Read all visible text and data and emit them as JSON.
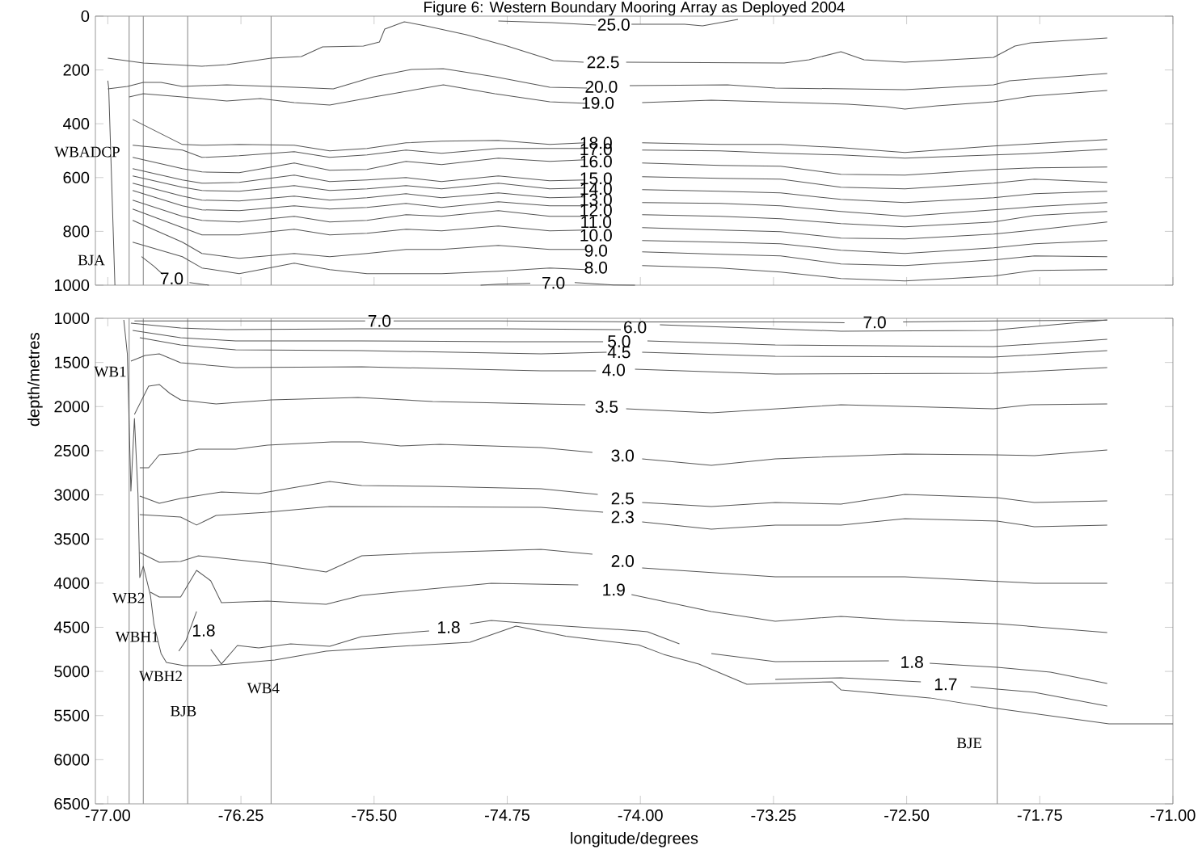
{
  "chart_data": [
    {
      "type": "line",
      "title": "Figure 6: Western Boundary Mooring Array as Deployed 2004",
      "xlim": [
        -77.07,
        -71.0
      ],
      "ylim": [
        1000,
        0
      ],
      "tick_labels": "y",
      "xticks": [
        -77,
        -76.25,
        -75.5,
        -74.75,
        -74,
        -73.25,
        -72.5,
        -71.75,
        -71
      ],
      "yticks": [
        0,
        200,
        400,
        600,
        800,
        1000
      ],
      "ref_lines": [
        {
          "axis": "x",
          "value": -76.88,
          "color": "#999999"
        },
        {
          "axis": "x",
          "value": -76.8,
          "color": "#999999"
        },
        {
          "axis": "x",
          "value": -76.55,
          "color": "#999999"
        },
        {
          "axis": "x",
          "value": -76.08,
          "color": "#999999"
        },
        {
          "axis": "x",
          "value": -71.99,
          "color": "#999999"
        }
      ],
      "annotations": [
        "WBADCP",
        "BJA"
      ],
      "series": [
        {
          "color": "#555555",
          "x": [
            -77.0,
            -76.995,
            -76.96
          ],
          "values": [
            240,
            267,
            1000
          ]
        },
        {
          "name": "25.0",
          "color": "#555555",
          "x": [
            -74.8,
            -74.5,
            -74.25,
            -74.15,
            -74.05,
            -73.75,
            -73.65,
            -73.45
          ],
          "values": [
            18,
            24,
            33,
            null,
            30,
            30,
            36,
            12
          ]
        },
        {
          "name": "22.5",
          "color": "#555555",
          "x": [
            -77.0,
            -76.8,
            -76.47,
            -76.33,
            -76.08,
            -75.91,
            -75.79,
            -75.56,
            -75.47,
            -75.44,
            -75.33,
            -75.21,
            -74.98,
            -74.75,
            -74.49,
            -74.32,
            -74.21,
            -74.08,
            -73.19,
            -73.05,
            -72.87,
            -72.74,
            -72.51,
            -72.01,
            -71.89,
            -71.8,
            -71.37
          ],
          "values": [
            156,
            174,
            186,
            180,
            156,
            150,
            114,
            111,
            96,
            48,
            21,
            36,
            69,
            111,
            165,
            171,
            null,
            171,
            174,
            162,
            132,
            162,
            171,
            153,
            111,
            99,
            81
          ]
        },
        {
          "name": "20.0",
          "color": "#555555",
          "x": [
            -77.0,
            -76.89,
            -76.8,
            -76.7,
            -76.58,
            -76.33,
            -76.08,
            -75.95,
            -75.73,
            -75.5,
            -75.29,
            -75.11,
            -74.82,
            -74.51,
            -74.3,
            -74.22,
            -74.06,
            -73.51,
            -73.24,
            -72.51,
            -72.01,
            -71.92,
            -71.37
          ],
          "values": [
            270,
            261,
            246,
            246,
            261,
            255,
            261,
            264,
            270,
            225,
            198,
            195,
            225,
            264,
            267,
            null,
            258,
            255,
            267,
            273,
            255,
            240,
            213
          ]
        },
        {
          "name": "19.0",
          "color": "#555555",
          "x": [
            -76.88,
            -76.8,
            -76.58,
            -76.33,
            -76.14,
            -75.95,
            -75.75,
            -75.5,
            -75.11,
            -74.82,
            -74.51,
            -74.3,
            -74.24,
            -73.99,
            -73.6,
            -72.83,
            -72.62,
            -72.51,
            -72.33,
            -72.01,
            -71.8,
            -71.37
          ],
          "values": [
            300,
            288,
            300,
            315,
            306,
            321,
            330,
            300,
            255,
            288,
            318,
            324,
            null,
            321,
            312,
            327,
            336,
            345,
            333,
            318,
            297,
            276
          ]
        },
        {
          "name": "18.0",
          "color": "#555555",
          "x": [
            -76.86,
            -76.58,
            -76.47,
            -76.26,
            -75.95,
            -75.75,
            -75.54,
            -75.32,
            -75.12,
            -74.8,
            -74.51,
            -74.31,
            -74.25,
            -73.99,
            -73.55,
            -73.21,
            -72.87,
            -72.51,
            -72.01,
            -71.78,
            -71.37
          ],
          "values": [
            384,
            477,
            480,
            477,
            480,
            501,
            492,
            471,
            465,
            462,
            477,
            471,
            null,
            471,
            477,
            477,
            489,
            507,
            483,
            474,
            459
          ]
        },
        {
          "name": "17.0",
          "color": "#555555",
          "x": [
            -76.86,
            -76.58,
            -76.47,
            -76.26,
            -75.95,
            -75.75,
            -75.54,
            -75.32,
            -75.12,
            -74.8,
            -74.51,
            -74.31,
            -74.25,
            -73.99,
            -73.55,
            -73.21,
            -72.87,
            -72.51,
            -72.01,
            -71.78,
            -71.37
          ],
          "values": [
            480,
            498,
            525,
            519,
            504,
            525,
            516,
            498,
            510,
            492,
            492,
            492,
            null,
            498,
            501,
            510,
            516,
            528,
            516,
            510,
            495
          ]
        },
        {
          "name": "16.0",
          "color": "#555555",
          "x": [
            -76.86,
            -76.58,
            -76.47,
            -76.26,
            -75.95,
            -75.75,
            -75.54,
            -75.32,
            -75.12,
            -74.8,
            -74.51,
            -74.31,
            -74.25,
            -73.99,
            -73.55,
            -73.21,
            -72.87,
            -72.51,
            -72.01,
            -71.78,
            -71.37
          ],
          "values": [
            525,
            567,
            579,
            582,
            546,
            573,
            570,
            540,
            552,
            528,
            540,
            534,
            null,
            546,
            555,
            558,
            588,
            591,
            570,
            564,
            561
          ]
        },
        {
          "name": "15.0",
          "color": "#555555",
          "x": [
            -76.86,
            -76.58,
            -76.47,
            -76.26,
            -75.95,
            -75.75,
            -75.54,
            -75.32,
            -75.12,
            -74.8,
            -74.51,
            -74.31,
            -74.25,
            -73.99,
            -73.55,
            -73.21,
            -72.87,
            -72.51,
            -72.01,
            -71.78,
            -71.37
          ],
          "values": [
            567,
            609,
            621,
            618,
            591,
            615,
            609,
            600,
            615,
            594,
            612,
            609,
            null,
            597,
            603,
            606,
            636,
            642,
            621,
            606,
            618
          ]
        },
        {
          "name": "14.0",
          "color": "#555555",
          "x": [
            -76.86,
            -76.58,
            -76.47,
            -76.26,
            -75.95,
            -75.75,
            -75.54,
            -75.32,
            -75.12,
            -74.8,
            -74.51,
            -74.31,
            -74.25,
            -73.99,
            -73.55,
            -73.21,
            -72.87,
            -72.51,
            -72.01,
            -71.78,
            -71.37
          ],
          "values": [
            594,
            636,
            648,
            651,
            630,
            648,
            642,
            630,
            642,
            621,
            642,
            639,
            null,
            645,
            651,
            657,
            681,
            693,
            675,
            660,
            651
          ]
        },
        {
          "name": "13.0",
          "color": "#555555",
          "x": [
            -76.86,
            -76.58,
            -76.47,
            -76.26,
            -75.95,
            -75.75,
            -75.54,
            -75.32,
            -75.12,
            -74.8,
            -74.51,
            -74.31,
            -74.25,
            -73.99,
            -73.55,
            -73.21,
            -72.87,
            -72.51,
            -72.01,
            -71.78,
            -71.37
          ],
          "values": [
            621,
            669,
            684,
            687,
            669,
            684,
            675,
            660,
            675,
            657,
            675,
            672,
            null,
            693,
            696,
            705,
            726,
            744,
            720,
            708,
            693
          ]
        },
        {
          "name": "12.0",
          "color": "#555555",
          "x": [
            -76.86,
            -76.58,
            -76.47,
            -76.26,
            -75.95,
            -75.75,
            -75.54,
            -75.32,
            -75.12,
            -74.8,
            -74.51,
            -74.31,
            -74.25,
            -73.99,
            -73.55,
            -73.21,
            -72.87,
            -72.51,
            -72.01,
            -71.78,
            -71.37
          ],
          "values": [
            648,
            705,
            720,
            723,
            705,
            717,
            711,
            696,
            711,
            690,
            705,
            705,
            null,
            738,
            744,
            753,
            771,
            783,
            765,
            741,
            726
          ]
        },
        {
          "name": "11.0",
          "color": "#555555",
          "x": [
            -76.86,
            -76.58,
            -76.47,
            -76.26,
            -75.95,
            -75.75,
            -75.54,
            -75.32,
            -75.12,
            -74.8,
            -74.51,
            -74.31,
            -74.25,
            -73.99,
            -73.55,
            -73.21,
            -72.87,
            -72.51,
            -72.01,
            -71.78,
            -71.37
          ],
          "values": [
            684,
            744,
            759,
            765,
            744,
            765,
            759,
            738,
            744,
            723,
            744,
            744,
            null,
            786,
            795,
            801,
            825,
            828,
            810,
            795,
            765
          ]
        },
        {
          "name": "10.0",
          "color": "#555555",
          "x": [
            -76.86,
            -76.58,
            -76.47,
            -76.26,
            -75.95,
            -75.75,
            -75.54,
            -75.32,
            -75.12,
            -74.8,
            -74.51,
            -74.31,
            -74.25,
            -73.99,
            -73.55,
            -73.21,
            -72.87,
            -72.51,
            -72.01,
            -71.78,
            -71.37
          ],
          "values": [
            717,
            786,
            813,
            813,
            792,
            813,
            807,
            792,
            798,
            780,
            798,
            795,
            null,
            834,
            840,
            846,
            870,
            882,
            861,
            846,
            834
          ]
        },
        {
          "name": "9.0",
          "color": "#555555",
          "x": [
            -76.86,
            -76.58,
            -76.47,
            -76.26,
            -75.95,
            -75.75,
            -75.54,
            -75.32,
            -75.12,
            -74.8,
            -74.51,
            -74.31,
            -74.25,
            -73.99,
            -73.55,
            -73.21,
            -72.87,
            -72.51,
            -72.01,
            -71.78,
            -71.37
          ],
          "values": [
            759,
            840,
            882,
            900,
            882,
            894,
            882,
            867,
            867,
            852,
            867,
            867,
            null,
            876,
            885,
            891,
            921,
            927,
            906,
            891,
            894
          ]
        },
        {
          "name": "8.0",
          "color": "#555555",
          "x": [
            -76.86,
            -76.58,
            -76.47,
            -76.26,
            -75.95,
            -75.75,
            -75.54,
            -75.32,
            -75.12,
            -74.8,
            -74.51,
            -74.31,
            -74.25,
            -73.99,
            -73.55,
            -73.21,
            -72.87,
            -72.51,
            -72.01,
            -71.78,
            -71.37
          ],
          "values": [
            840,
            894,
            936,
            957,
            918,
            942,
            957,
            957,
            957,
            948,
            936,
            942,
            null,
            927,
            936,
            951,
            975,
            984,
            966,
            945,
            942
          ]
        },
        {
          "name": "7.0",
          "color": "#555555",
          "x": [
            -76.81,
            -76.74,
            -76.69,
            -76.64,
            -76.54,
            -76.43
          ],
          "values": [
            894,
            930,
            960,
            null,
            990,
            1000
          ]
        },
        {
          "name": "7.0",
          "color": "#555555",
          "x": [
            -74.9,
            -74.8,
            -74.62,
            -74.49,
            -74.37,
            -74.15,
            -74.03
          ],
          "values": [
            1000,
            996,
            993,
            null,
            990,
            999,
            1000
          ]
        }
      ]
    },
    {
      "type": "line",
      "xlabel": "longitude/degrees",
      "ylabel": "depth/metres",
      "xlim": [
        -77.07,
        -71.0
      ],
      "ylim": [
        6500,
        1000
      ],
      "xticks": [
        {
          "value": -77,
          "label": "-77.00"
        },
        {
          "value": -76.25,
          "label": "-76.25"
        },
        {
          "value": -75.5,
          "label": "-75.50"
        },
        {
          "value": -74.75,
          "label": "-74.75"
        },
        {
          "value": -74,
          "label": "-74.00"
        },
        {
          "value": -73.25,
          "label": "-73.25"
        },
        {
          "value": -72.5,
          "label": "-72.50"
        },
        {
          "value": -71.75,
          "label": "-71.75"
        },
        {
          "value": -71,
          "label": "-71.00"
        }
      ],
      "yticks": [
        1000,
        1500,
        2000,
        2500,
        3000,
        3500,
        4000,
        4500,
        5000,
        5500,
        6000,
        6500
      ],
      "ref_lines": [
        {
          "axis": "x",
          "value": -76.88,
          "color": "#999999"
        },
        {
          "axis": "x",
          "value": -76.8,
          "color": "#999999"
        },
        {
          "axis": "x",
          "value": -76.55,
          "color": "#999999"
        },
        {
          "axis": "x",
          "value": -76.08,
          "color": "#999999"
        },
        {
          "axis": "x",
          "value": -71.99,
          "color": "#999999"
        }
      ],
      "annotations": [
        "WB1",
        "WB2",
        "WBH1",
        "WBH2",
        "BJB",
        "WB4",
        "BJE"
      ],
      "series": [
        {
          "color": "#555555",
          "x": [
            -76.91,
            -76.89,
            -76.87,
            -76.85,
            -76.83,
            -76.82,
            -76.8,
            -76.76,
            -76.74,
            -76.7,
            -76.67,
            -76.57,
            -76.42,
            -76.06,
            -75.77,
            -75.35,
            -74.96,
            -74.7,
            -74.42,
            -74.01,
            -73.87,
            -73.67,
            -73.4,
            -72.92,
            -72.87,
            -72.37,
            -71.99,
            -71.36,
            -71.0
          ],
          "values": [
            1018,
            1403,
            2958,
            2135,
            2995,
            3937,
            3809,
            4138,
            4468,
            4797,
            4898,
            4935,
            4935,
            4870,
            4770,
            4715,
            4669,
            4486,
            4600,
            4700,
            4806,
            4916,
            5145,
            5118,
            5209,
            5300,
            5419,
            5593,
            5593
          ]
        },
        {
          "name": "7.0",
          "color": "#555555",
          "x": [
            -76.85,
            -76.4,
            -75.55,
            -75.47,
            -75.39,
            -74.8,
            -74.0,
            -73.2,
            -72.85,
            -72.68,
            -72.52,
            -72.0,
            -71.37
          ],
          "values": [
            1030,
            1030,
            1030,
            null,
            1030,
            1030,
            1040,
            1040,
            1050,
            null,
            1040,
            1030,
            1020
          ]
        },
        {
          "name": "6.0",
          "color": "#555555",
          "x": [
            -76.87,
            -76.59,
            -76.33,
            -75.57,
            -74.76,
            -74.11,
            -74.03,
            -73.89,
            -72.87,
            -72.03,
            -71.37
          ],
          "values": [
            1055,
            1110,
            1128,
            1119,
            1119,
            1128,
            null,
            1073,
            1146,
            1137,
            1018
          ]
        },
        {
          "name": "5.0",
          "color": "#555555",
          "x": [
            -76.86,
            -76.59,
            -76.28,
            -75.57,
            -74.76,
            -74.21,
            -74.12,
            -73.96,
            -73.24,
            -72.01,
            -71.37
          ],
          "values": [
            1137,
            1220,
            1256,
            1256,
            1265,
            1265,
            null,
            1256,
            1302,
            1320,
            1238
          ]
        },
        {
          "name": "4.5",
          "color": "#555555",
          "x": [
            -76.82,
            -76.59,
            -76.28,
            -75.57,
            -74.56,
            -74.19,
            -74.12,
            -73.99,
            -73.24,
            -72.01,
            -71.37
          ],
          "values": [
            1220,
            1302,
            1357,
            1366,
            1403,
            1384,
            null,
            1384,
            1430,
            1439,
            1366
          ]
        },
        {
          "name": "4.0",
          "color": "#555555",
          "x": [
            -76.87,
            -76.79,
            -76.71,
            -76.59,
            -76.28,
            -75.57,
            -74.56,
            -74.25,
            -74.15,
            -74.03,
            -73.24,
            -72.01,
            -71.37
          ],
          "values": [
            1485,
            1421,
            1403,
            1503,
            1558,
            1549,
            1595,
            1595,
            null,
            1576,
            1631,
            1622,
            1558
          ]
        },
        {
          "name": "3.5",
          "color": "#555555",
          "x": [
            -76.85,
            -76.77,
            -76.71,
            -76.65,
            -76.59,
            -76.39,
            -76.08,
            -75.59,
            -75.17,
            -74.56,
            -74.31,
            -74.19,
            -74.08,
            -73.6,
            -72.87,
            -72.01,
            -71.8,
            -71.37
          ],
          "values": [
            2089,
            1769,
            1750,
            1851,
            1924,
            1970,
            1924,
            1897,
            1942,
            1970,
            1979,
            null,
            2025,
            2071,
            1979,
            2025,
            1979,
            1970
          ]
        },
        {
          "name": "3.0",
          "color": "#555555",
          "x": [
            -76.82,
            -76.77,
            -76.71,
            -76.59,
            -76.49,
            -76.28,
            -76.1,
            -75.74,
            -75.57,
            -75.35,
            -75.13,
            -74.56,
            -74.27,
            -74.1,
            -73.99,
            -73.6,
            -73.24,
            -72.51,
            -72.01,
            -71.78,
            -71.37
          ],
          "values": [
            2693,
            2693,
            2546,
            2528,
            2482,
            2482,
            2437,
            2400,
            2400,
            2446,
            2427,
            2464,
            2519,
            null,
            2592,
            2665,
            2592,
            2537,
            2546,
            2556,
            2491
          ]
        },
        {
          "name": "2.5",
          "color": "#555555",
          "x": [
            -76.82,
            -76.71,
            -76.59,
            -76.36,
            -76.15,
            -75.75,
            -75.57,
            -75.17,
            -74.56,
            -74.24,
            -74.1,
            -73.99,
            -73.6,
            -73.24,
            -72.87,
            -72.51,
            -71.99,
            -71.78,
            -71.37
          ],
          "values": [
            3013,
            3095,
            3040,
            2967,
            2986,
            2848,
            2894,
            2903,
            2931,
            2995,
            null,
            3086,
            3132,
            3086,
            3105,
            2995,
            3031,
            3086,
            3068
          ]
        },
        {
          "name": "2.3",
          "color": "#555555",
          "x": [
            -76.82,
            -76.59,
            -76.5,
            -76.39,
            -76.1,
            -75.75,
            -74.56,
            -74.21,
            -74.1,
            -73.99,
            -73.6,
            -73.24,
            -72.87,
            -72.51,
            -71.99,
            -71.78,
            -71.37
          ],
          "values": [
            3223,
            3251,
            3342,
            3233,
            3196,
            3132,
            3141,
            3196,
            null,
            3306,
            3388,
            3342,
            3342,
            3269,
            3297,
            3361,
            3342
          ]
        },
        {
          "name": "2.0",
          "color": "#555555",
          "x": [
            -76.82,
            -76.71,
            -76.59,
            -76.49,
            -76.1,
            -75.77,
            -75.57,
            -75.17,
            -74.56,
            -74.27,
            -74.1,
            -73.99,
            -73.24,
            -72.51,
            -71.78,
            -71.37
          ],
          "values": [
            3654,
            3763,
            3754,
            3690,
            3772,
            3873,
            3690,
            3654,
            3617,
            3672,
            null,
            3827,
            3928,
            3928,
            4001,
            4001
          ]
        },
        {
          "name": "1.9",
          "color": "#555555",
          "x": [
            -76.76,
            -76.71,
            -76.59,
            -76.5,
            -76.42,
            -76.36,
            -76.1,
            -75.77,
            -75.57,
            -74.84,
            -74.35,
            -74.15,
            -74.05,
            -73.6,
            -73.24,
            -72.87,
            -72.51,
            -71.99,
            -71.37
          ],
          "values": [
            4102,
            4157,
            4157,
            3855,
            3974,
            4221,
            4203,
            4239,
            4138,
            4001,
            4020,
            null,
            4129,
            4321,
            4431,
            4376,
            4422,
            4459,
            4559
          ]
        },
        {
          "name": "1.8",
          "color": "#555555",
          "x": [
            -76.6,
            -76.56,
            -76.5,
            -76.46,
            -76.42,
            -76.36,
            -76.27,
            -76.15,
            -75.97,
            -75.75,
            -75.57,
            -75.19,
            -75.08,
            -74.96,
            -74.84,
            -74.56,
            -74.01,
            -73.96,
            -73.78
          ],
          "values": [
            4770,
            4650,
            4321,
            null,
            4751,
            4916,
            4706,
            4733,
            4687,
            4715,
            4605,
            4541,
            null,
            4459,
            4422,
            4468,
            4541,
            4550,
            4688
          ]
        },
        {
          "name": "1.8",
          "color": "#555555",
          "x": [
            -73.6,
            -73.24,
            -72.6,
            -72.47,
            -72.37,
            -71.99,
            -71.69,
            -71.37
          ],
          "values": [
            4797,
            4889,
            4880,
            null,
            4907,
            4953,
            5008,
            5136
          ]
        },
        {
          "name": "1.7",
          "color": "#555555",
          "x": [
            -73.24,
            -72.87,
            -72.42,
            -72.28,
            -72.14,
            -71.99,
            -71.78,
            -71.37
          ],
          "values": [
            5090,
            5072,
            5118,
            null,
            5172,
            5200,
            5236,
            5392
          ]
        }
      ]
    }
  ]
}
